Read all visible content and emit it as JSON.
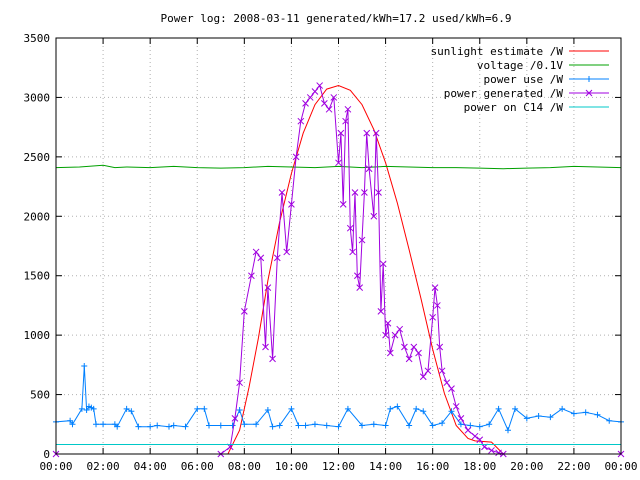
{
  "chart_data": {
    "type": "line",
    "title": "Power log: 2008-03-11 generated/kWh=17.2 used/kWh=6.9",
    "xlabel": "",
    "ylabel": "",
    "xlim": [
      0,
      24
    ],
    "ylim": [
      0,
      3500
    ],
    "grid": true,
    "legend_position": "top-right",
    "x_ticks": [
      0,
      2,
      4,
      6,
      8,
      10,
      12,
      14,
      16,
      18,
      20,
      22,
      24
    ],
    "x_tick_labels": [
      "00:00",
      "02:00",
      "04:00",
      "06:00",
      "08:00",
      "10:00",
      "12:00",
      "14:00",
      "16:00",
      "18:00",
      "20:00",
      "22:00",
      "00:00"
    ],
    "y_ticks": [
      0,
      500,
      1000,
      1500,
      2000,
      2500,
      3000,
      3500
    ],
    "y_tick_labels": [
      "0",
      "500",
      "1000",
      "1500",
      "2000",
      "2500",
      "3000",
      "3500"
    ],
    "series": [
      {
        "name": "sunlight estimate /W",
        "color": "#ff0000",
        "marker": "none",
        "x": [
          0,
          7.3,
          7.8,
          8.2,
          8.6,
          9.0,
          9.5,
          10.0,
          10.5,
          11.0,
          11.5,
          12.0,
          12.5,
          13.0,
          13.5,
          14.0,
          14.5,
          15.0,
          15.5,
          16.0,
          16.5,
          17.0,
          17.5,
          17.8,
          18.5,
          19.0,
          24
        ],
        "values": [
          0,
          0,
          200,
          560,
          980,
          1460,
          1950,
          2360,
          2700,
          2940,
          3070,
          3100,
          3060,
          2940,
          2730,
          2450,
          2110,
          1720,
          1310,
          880,
          510,
          240,
          130,
          110,
          100,
          0,
          0
        ]
      },
      {
        "name": "voltage /0.1V",
        "color": "#00a000",
        "marker": "none",
        "x": [
          0,
          1,
          2,
          2.5,
          3,
          4,
          5,
          6,
          7,
          8,
          9,
          10,
          11,
          12,
          13,
          14,
          15,
          16,
          17,
          18,
          19,
          20,
          21,
          22,
          23,
          24
        ],
        "values": [
          2410,
          2415,
          2430,
          2410,
          2415,
          2410,
          2420,
          2410,
          2405,
          2410,
          2420,
          2415,
          2410,
          2420,
          2410,
          2420,
          2415,
          2410,
          2410,
          2405,
          2400,
          2405,
          2410,
          2420,
          2415,
          2410
        ]
      },
      {
        "name": "power use /W",
        "color": "#0080ff",
        "marker": "plus",
        "x": [
          0,
          0.6,
          0.7,
          1.1,
          1.2,
          1.3,
          1.4,
          1.5,
          1.6,
          1.7,
          2.0,
          2.5,
          2.6,
          3.0,
          3.2,
          3.5,
          4.0,
          4.3,
          4.8,
          5.0,
          5.5,
          6.0,
          6.3,
          6.5,
          7.0,
          7.5,
          7.8,
          8.0,
          8.5,
          9.0,
          9.2,
          9.5,
          10.0,
          10.3,
          10.6,
          11.0,
          11.5,
          12.0,
          12.4,
          13.0,
          13.5,
          14.0,
          14.2,
          14.5,
          15.0,
          15.3,
          15.6,
          16.0,
          16.4,
          16.8,
          17.2,
          17.6,
          18.0,
          18.4,
          18.8,
          19.2,
          19.5,
          20.0,
          20.5,
          21.0,
          21.5,
          22.0,
          22.5,
          23.0,
          23.5,
          24
        ],
        "values": [
          270,
          280,
          250,
          380,
          740,
          370,
          400,
          390,
          380,
          250,
          250,
          250,
          230,
          380,
          360,
          230,
          230,
          240,
          230,
          240,
          230,
          380,
          380,
          240,
          240,
          240,
          370,
          250,
          250,
          370,
          230,
          240,
          380,
          240,
          240,
          250,
          240,
          230,
          380,
          240,
          250,
          240,
          380,
          400,
          240,
          380,
          360,
          240,
          260,
          360,
          250,
          240,
          230,
          250,
          380,
          200,
          380,
          300,
          320,
          310,
          380,
          340,
          350,
          330,
          280,
          270
        ]
      },
      {
        "name": "power generated /W",
        "color": "#a000e0",
        "marker": "cross",
        "x": [
          0,
          7.0,
          7.4,
          7.6,
          7.8,
          8.0,
          8.3,
          8.5,
          8.7,
          8.9,
          9.0,
          9.2,
          9.4,
          9.6,
          9.8,
          10.0,
          10.2,
          10.4,
          10.6,
          10.8,
          11.0,
          11.2,
          11.4,
          11.6,
          11.8,
          12.0,
          12.1,
          12.2,
          12.3,
          12.4,
          12.5,
          12.6,
          12.7,
          12.8,
          12.9,
          13.0,
          13.1,
          13.2,
          13.3,
          13.5,
          13.6,
          13.7,
          13.8,
          13.9,
          14.0,
          14.1,
          14.2,
          14.4,
          14.6,
          14.8,
          15.0,
          15.2,
          15.4,
          15.6,
          15.8,
          16.0,
          16.1,
          16.2,
          16.3,
          16.4,
          16.6,
          16.8,
          17.0,
          17.2,
          17.5,
          17.8,
          18.0,
          18.2,
          18.5,
          18.8,
          19.0,
          24
        ],
        "values": [
          0,
          0,
          60,
          300,
          600,
          1200,
          1500,
          1700,
          1650,
          900,
          1400,
          800,
          1650,
          2200,
          1700,
          2100,
          2500,
          2800,
          2950,
          3000,
          3050,
          3100,
          2950,
          2900,
          3000,
          2450,
          2700,
          2100,
          2800,
          2900,
          1900,
          1700,
          2200,
          1500,
          1400,
          1800,
          2200,
          2700,
          2400,
          2000,
          2700,
          2200,
          1200,
          1600,
          1000,
          1100,
          850,
          1000,
          1050,
          900,
          800,
          900,
          850,
          650,
          700,
          1150,
          1400,
          1250,
          900,
          700,
          600,
          550,
          400,
          300,
          200,
          150,
          120,
          60,
          30,
          10,
          0,
          0
        ]
      },
      {
        "name": "power on C14 /W",
        "color": "#00c8c8",
        "marker": "none",
        "x": [
          0,
          24
        ],
        "values": [
          80,
          80
        ]
      }
    ]
  }
}
